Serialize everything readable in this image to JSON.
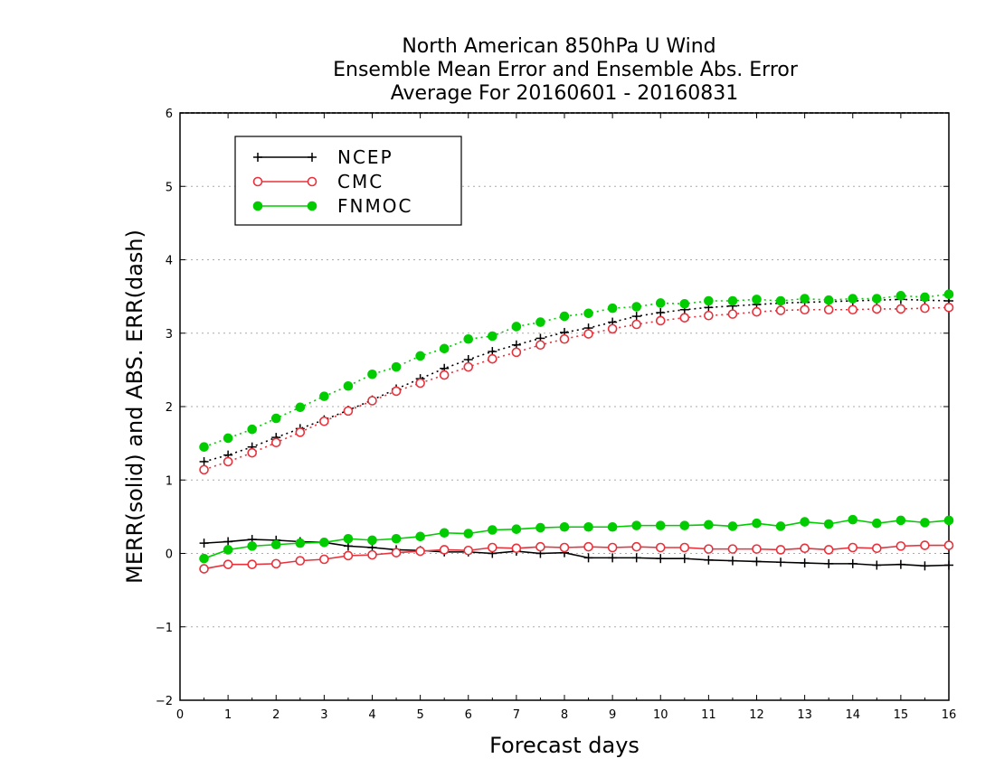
{
  "chart_data": {
    "type": "line",
    "title": [
      "North American 850hPa U Wind",
      "Ensemble Mean Error and Ensemble Abs. Error",
      "Average For 20160601 - 20160831"
    ],
    "xlabel": "Forecast days",
    "ylabel": "MERR(solid) and ABS. ERR(dash)",
    "xlim": [
      0,
      16
    ],
    "ylim": [
      -2,
      6
    ],
    "x_ticks": [
      0,
      1,
      2,
      3,
      4,
      5,
      6,
      7,
      8,
      9,
      10,
      11,
      12,
      13,
      14,
      15,
      16
    ],
    "y_ticks": [
      -2,
      -1,
      0,
      1,
      2,
      3,
      4,
      5,
      6
    ],
    "grid": "horizontal dotted",
    "legend_placement": "top-left",
    "x": [
      0.5,
      1,
      1.5,
      2,
      2.5,
      3,
      3.5,
      4,
      4.5,
      5,
      5.5,
      6,
      6.5,
      7,
      7.5,
      8,
      8.5,
      9,
      9.5,
      10,
      10.5,
      11,
      11.5,
      12,
      12.5,
      13,
      13.5,
      14,
      14.5,
      15,
      15.5,
      16
    ],
    "series": [
      {
        "name": "NCEP",
        "color": "#000000",
        "marker": "plus",
        "merr": [
          0.14,
          0.16,
          0.19,
          0.18,
          0.16,
          0.15,
          0.1,
          0.08,
          0.05,
          0.04,
          0.02,
          0.02,
          0.0,
          0.03,
          0.0,
          0.01,
          -0.06,
          -0.06,
          -0.06,
          -0.07,
          -0.07,
          -0.09,
          -0.1,
          -0.11,
          -0.12,
          -0.13,
          -0.14,
          -0.14,
          -0.16,
          -0.15,
          -0.17,
          -0.16
        ],
        "abs_err": [
          1.25,
          1.34,
          1.45,
          1.58,
          1.7,
          1.82,
          1.95,
          2.09,
          2.24,
          2.38,
          2.52,
          2.64,
          2.75,
          2.84,
          2.93,
          3.01,
          3.07,
          3.15,
          3.23,
          3.28,
          3.32,
          3.35,
          3.37,
          3.39,
          3.41,
          3.42,
          3.43,
          3.44,
          3.45,
          3.46,
          3.45,
          3.44
        ]
      },
      {
        "name": "CMC",
        "color": "#e8323c",
        "marker": "open-circle",
        "merr": [
          -0.21,
          -0.15,
          -0.15,
          -0.14,
          -0.1,
          -0.08,
          -0.03,
          -0.02,
          0.01,
          0.03,
          0.05,
          0.04,
          0.08,
          0.07,
          0.09,
          0.08,
          0.09,
          0.08,
          0.09,
          0.08,
          0.08,
          0.06,
          0.06,
          0.06,
          0.05,
          0.07,
          0.05,
          0.08,
          0.07,
          0.1,
          0.11,
          0.11
        ],
        "abs_err": [
          1.14,
          1.25,
          1.37,
          1.51,
          1.65,
          1.8,
          1.94,
          2.08,
          2.21,
          2.32,
          2.43,
          2.54,
          2.65,
          2.74,
          2.84,
          2.92,
          2.99,
          3.06,
          3.12,
          3.17,
          3.21,
          3.24,
          3.26,
          3.29,
          3.31,
          3.32,
          3.32,
          3.32,
          3.33,
          3.33,
          3.34,
          3.35
        ]
      },
      {
        "name": "FNMOC",
        "color": "#00cc00",
        "marker": "filled-circle",
        "merr": [
          -0.07,
          0.05,
          0.1,
          0.12,
          0.14,
          0.15,
          0.2,
          0.18,
          0.2,
          0.23,
          0.28,
          0.27,
          0.32,
          0.33,
          0.35,
          0.36,
          0.36,
          0.36,
          0.38,
          0.38,
          0.38,
          0.39,
          0.37,
          0.41,
          0.37,
          0.43,
          0.4,
          0.46,
          0.41,
          0.45,
          0.42,
          0.45
        ],
        "abs_err": [
          1.45,
          1.57,
          1.69,
          1.84,
          1.99,
          2.14,
          2.28,
          2.44,
          2.54,
          2.69,
          2.79,
          2.92,
          2.96,
          3.09,
          3.15,
          3.23,
          3.27,
          3.34,
          3.36,
          3.41,
          3.4,
          3.44,
          3.44,
          3.46,
          3.44,
          3.47,
          3.45,
          3.47,
          3.47,
          3.51,
          3.49,
          3.53
        ]
      }
    ]
  }
}
